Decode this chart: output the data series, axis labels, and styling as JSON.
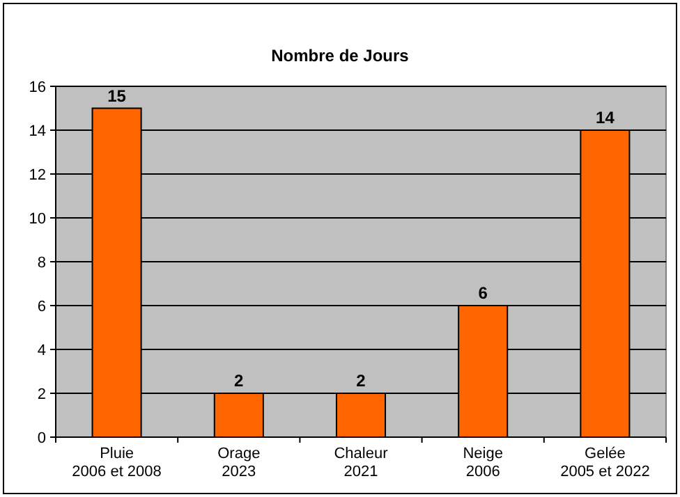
{
  "chart_data": {
    "type": "bar",
    "title": "Nombre de Jours",
    "categories": [
      "Pluie\n2006 et 2008",
      "Orage\n2023",
      "Chaleur\n2021",
      "Neige\n2006",
      "Gelée\n2005 et 2022"
    ],
    "values": [
      15,
      2,
      2,
      6,
      14
    ],
    "color": "#ff6600",
    "ylim": [
      0,
      16
    ],
    "yticks": [
      0,
      2,
      4,
      6,
      8,
      10,
      12,
      14,
      16
    ],
    "grid": "y",
    "data_labels": true
  }
}
